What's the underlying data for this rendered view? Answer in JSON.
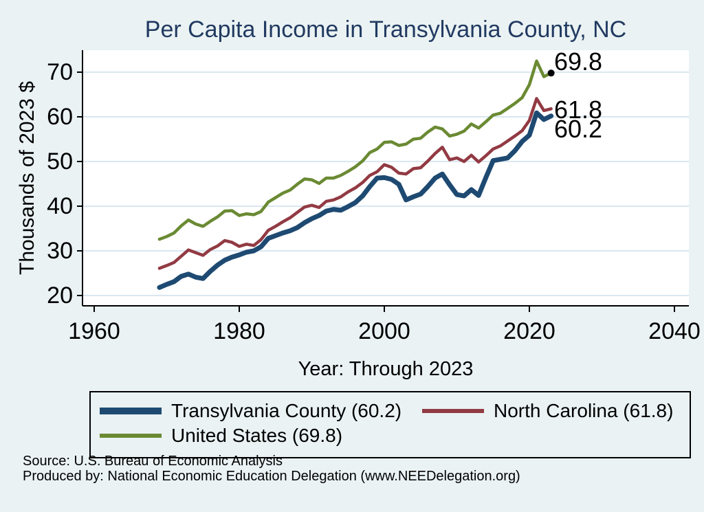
{
  "chart_data": {
    "type": "line",
    "title": "Per Capita Income in Transylvania County, NC",
    "xlabel": "Year: Through 2023",
    "ylabel": "Thousands of 2023 $",
    "x_ticks": [
      1960,
      1980,
      2000,
      2020,
      2040
    ],
    "y_ticks": [
      20,
      30,
      40,
      50,
      60,
      70
    ],
    "xlim": [
      1958.4,
      2042
    ],
    "ylim": [
      17.7,
      75.4
    ],
    "grid": "horizontal",
    "grid_color": "#d9e7f1",
    "background": "#eaf2f3",
    "plot_background": "#ffffff",
    "axis_color": "#000000",
    "legend_position": "bottom",
    "x": [
      1969,
      1970,
      1971,
      1972,
      1973,
      1974,
      1975,
      1976,
      1977,
      1978,
      1979,
      1980,
      1981,
      1982,
      1983,
      1984,
      1985,
      1986,
      1987,
      1988,
      1989,
      1990,
      1991,
      1992,
      1993,
      1994,
      1995,
      1996,
      1997,
      1998,
      1999,
      2000,
      2001,
      2002,
      2003,
      2004,
      2005,
      2006,
      2007,
      2008,
      2009,
      2010,
      2011,
      2012,
      2013,
      2014,
      2015,
      2016,
      2017,
      2018,
      2019,
      2020,
      2021,
      2022,
      2023
    ],
    "series": [
      {
        "name": "Transylvania County (60.2)",
        "color": "#1e4a72",
        "line_width": 7,
        "values": [
          21.8,
          22.5,
          23.1,
          24.3,
          24.8,
          24.1,
          23.8,
          25.4,
          26.8,
          27.9,
          28.6,
          29.1,
          29.7,
          30.0,
          30.9,
          32.8,
          33.4,
          34.0,
          34.5,
          35.2,
          36.3,
          37.2,
          37.9,
          38.9,
          39.3,
          39.1,
          39.9,
          40.8,
          42.3,
          44.4,
          46.3,
          46.4,
          46.0,
          44.9,
          41.4,
          42.1,
          42.7,
          44.4,
          46.3,
          47.2,
          44.8,
          42.6,
          42.3,
          43.7,
          42.4,
          46.4,
          50.2,
          50.5,
          50.8,
          52.4,
          54.5,
          55.9,
          60.9,
          59.4,
          60.2
        ]
      },
      {
        "name": "North Carolina (61.8)",
        "color": "#923a43",
        "line_width": 4.5,
        "values": [
          26.1,
          26.7,
          27.4,
          28.8,
          30.2,
          29.6,
          29.0,
          30.3,
          31.1,
          32.3,
          31.9,
          31.0,
          31.5,
          31.2,
          32.5,
          34.6,
          35.5,
          36.5,
          37.4,
          38.6,
          39.8,
          40.2,
          39.7,
          41.1,
          41.4,
          42.1,
          43.2,
          44.1,
          45.3,
          46.9,
          47.7,
          49.3,
          48.7,
          47.4,
          47.2,
          48.4,
          48.6,
          50.1,
          51.8,
          53.2,
          50.4,
          50.8,
          50.0,
          51.4,
          49.9,
          51.3,
          52.8,
          53.5,
          54.6,
          55.7,
          56.9,
          59.2,
          64.1,
          61.4,
          61.8
        ]
      },
      {
        "name": "United States (69.8)",
        "color": "#6a8a33",
        "line_width": 4.5,
        "values": [
          32.6,
          33.2,
          34.0,
          35.6,
          36.9,
          36.0,
          35.5,
          36.6,
          37.6,
          38.9,
          39.0,
          37.9,
          38.3,
          38.1,
          38.8,
          40.9,
          41.9,
          42.9,
          43.6,
          44.9,
          46.1,
          45.9,
          45.1,
          46.3,
          46.3,
          46.9,
          47.8,
          48.8,
          50.1,
          52.0,
          52.8,
          54.3,
          54.4,
          53.6,
          53.9,
          55.0,
          55.2,
          56.6,
          57.7,
          57.3,
          55.7,
          56.1,
          56.8,
          58.4,
          57.5,
          58.9,
          60.4,
          60.8,
          61.9,
          63.0,
          64.3,
          67.2,
          72.5,
          69.0,
          69.8
        ],
        "end_marker": {
          "x": 2023,
          "y": 69.8,
          "color": "#000000"
        }
      }
    ]
  },
  "annotations": [
    {
      "text": "69.8"
    },
    {
      "text": "61.8"
    },
    {
      "text": "60.2"
    }
  ],
  "legend": {
    "items": [
      {
        "label": "Transylvania County (60.2)",
        "color": "#1e4a72",
        "swatch_height": 10
      },
      {
        "label": "North Carolina (61.8)",
        "color": "#923a43",
        "swatch_height": 6
      },
      {
        "label": "United States (69.8)",
        "color": "#6a8a33",
        "swatch_height": 6
      }
    ]
  },
  "footer": {
    "source": "Source: U.S. Bureau of Economic Analysis",
    "produced_by": "Produced by: National Economic Education Delegation (www.NEEDelegation.org)"
  }
}
